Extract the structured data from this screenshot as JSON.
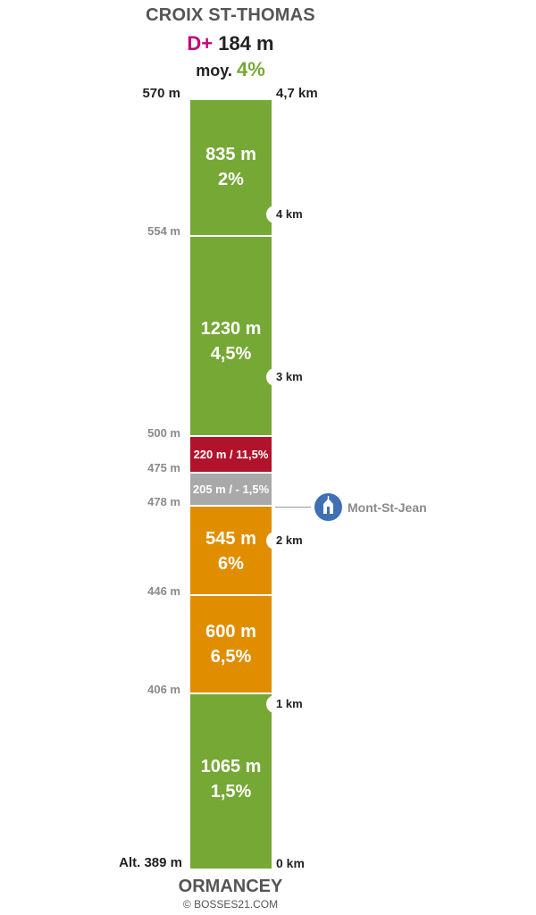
{
  "summit_name": "CROIX ST-THOMAS",
  "gain": {
    "label": "D+",
    "value": "184 m"
  },
  "average": {
    "label": "moy.",
    "value": "4%"
  },
  "top": {
    "altitude": "570 m",
    "distance": "4,7 km"
  },
  "bottom": {
    "altitude": "Alt. 389 m",
    "distance": "0 km"
  },
  "start_name": "ORMANCEY",
  "copyright": "© BOSSES21.COM",
  "altitude_marks": [
    {
      "label": "554 m"
    },
    {
      "label": "500 m"
    },
    {
      "label": "475 m"
    },
    {
      "label": "478 m"
    },
    {
      "label": "446 m"
    },
    {
      "label": "406 m"
    }
  ],
  "km_marks": [
    {
      "label": "4 km"
    },
    {
      "label": "3 km"
    },
    {
      "label": "2 km"
    },
    {
      "label": "1 km"
    }
  ],
  "segments": [
    {
      "length": "835 m",
      "grade": "2%",
      "color": "#76a836"
    },
    {
      "length": "1230 m",
      "grade": "4,5%",
      "color": "#76a836"
    },
    {
      "combined": "220 m / 11,5%",
      "color": "#b0132b"
    },
    {
      "combined": "205 m / - 1,5%",
      "color": "#a9a9a9"
    },
    {
      "length": "545 m",
      "grade": "6%",
      "color": "#e08e00"
    },
    {
      "length": "600 m",
      "grade": "6,5%",
      "color": "#e08e00"
    },
    {
      "length": "1065 m",
      "grade": "1,5%",
      "color": "#76a836"
    }
  ],
  "poi": {
    "label": "Mont-St-Jean",
    "icon": "church-icon"
  }
}
